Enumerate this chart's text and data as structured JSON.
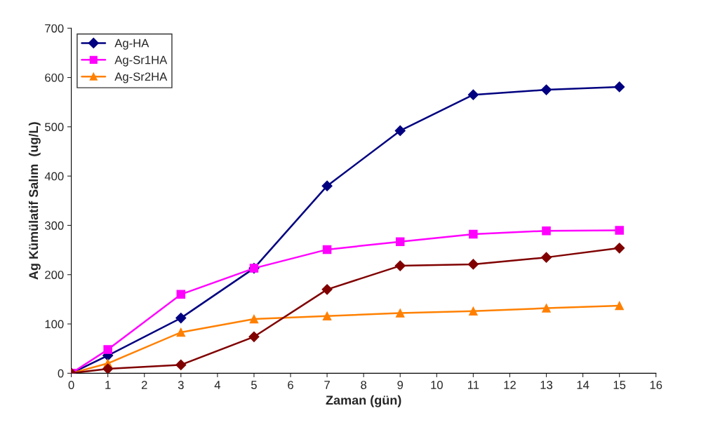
{
  "chart_data": {
    "type": "line",
    "xlabel": "Zaman (gün)",
    "ylabel": "Ag Kümülatif Salım  (ug/L)",
    "x": [
      0,
      1,
      3,
      5,
      7,
      9,
      11,
      13,
      15
    ],
    "series": [
      {
        "name": "Ag-HA",
        "color": "#000080",
        "marker": "diamond",
        "values": [
          0,
          36,
          112,
          213,
          380,
          492,
          565,
          575,
          581
        ]
      },
      {
        "name": "Ag-Sr1HA",
        "color": "#ff00ff",
        "marker": "square",
        "values": [
          0,
          48,
          160,
          213,
          251,
          267,
          282,
          289,
          290
        ]
      },
      {
        "name": "Ag-Sr2HA",
        "color": "#ff8000",
        "marker": "triangle",
        "values": [
          0,
          20,
          83,
          110,
          116,
          122,
          126,
          132,
          137
        ]
      },
      {
        "color": "#800000",
        "marker": "diamond",
        "values": [
          0,
          9,
          17,
          74,
          170,
          218,
          221,
          235,
          254
        ]
      }
    ],
    "xlim": [
      0,
      16
    ],
    "xticks": [
      0,
      1,
      2,
      3,
      4,
      5,
      6,
      7,
      8,
      9,
      10,
      11,
      12,
      13,
      14,
      15,
      16
    ],
    "ylim": [
      0,
      700
    ],
    "yticks": [
      0,
      100,
      200,
      300,
      400,
      500,
      600,
      700
    ],
    "grid": false,
    "legend": "top left"
  }
}
